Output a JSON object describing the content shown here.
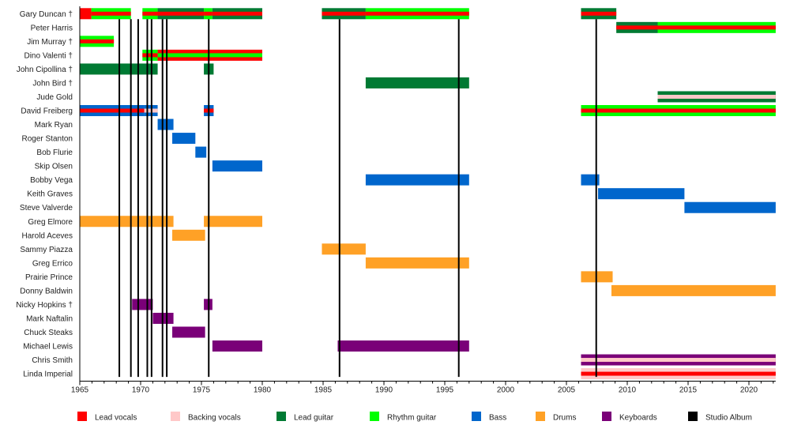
{
  "chart_data": {
    "type": "timeline",
    "title": "",
    "xlabel": "",
    "ylabel": "",
    "xlim": [
      1965,
      2022.2
    ],
    "x_ticks": [
      1965,
      1970,
      1975,
      1980,
      1985,
      1990,
      1995,
      2000,
      2005,
      2010,
      2015,
      2020
    ],
    "legend_position": "bottom",
    "roles": {
      "lead_vocals": {
        "label": "Lead vocals",
        "color": "#ff0000"
      },
      "backing_vocals": {
        "label": "Backing vocals",
        "color": "#ffc8c8"
      },
      "lead_guitar": {
        "label": "Lead guitar",
        "color": "#007a33"
      },
      "rhythm_guitar": {
        "label": "Rhythm guitar",
        "color": "#00ff00"
      },
      "bass": {
        "label": "Bass",
        "color": "#0066cc"
      },
      "drums": {
        "label": "Drums",
        "color": "#ffa126"
      },
      "keyboards": {
        "label": "Keyboards",
        "color": "#7a0078"
      },
      "studio_album": {
        "label": "Studio Album",
        "color": "#000000"
      }
    },
    "legend_order": [
      "lead_vocals",
      "backing_vocals",
      "lead_guitar",
      "rhythm_guitar",
      "bass",
      "drums",
      "keyboards",
      "studio_album"
    ],
    "studio_albums": [
      1968.25,
      1969.2,
      1969.8,
      1970.55,
      1970.9,
      1971.8,
      1972.15,
      1975.6,
      1986.35,
      1996.15,
      2007.45
    ],
    "members": [
      {
        "name": "Gary Duncan †",
        "periods": [
          {
            "start": 1965.0,
            "end": 1965.95,
            "role": "lead_vocals"
          },
          {
            "start": 1965.95,
            "end": 1969.2,
            "role": "rhythm_guitar",
            "vocals": "lead_vocals"
          },
          {
            "start": 1970.15,
            "end": 1971.4,
            "role": "rhythm_guitar",
            "vocals": "lead_vocals"
          },
          {
            "start": 1971.4,
            "end": 1975.2,
            "role": "lead_guitar",
            "vocals": "lead_vocals"
          },
          {
            "start": 1975.2,
            "end": 1975.9,
            "role": "rhythm_guitar",
            "vocals": "lead_vocals"
          },
          {
            "start": 1975.9,
            "end": 1980.0,
            "role": "lead_guitar",
            "vocals": "lead_vocals"
          },
          {
            "start": 1984.9,
            "end": 1988.5,
            "role": "lead_guitar",
            "vocals": "lead_vocals"
          },
          {
            "start": 1988.5,
            "end": 1997.0,
            "role": "rhythm_guitar",
            "vocals": "lead_vocals"
          },
          {
            "start": 2006.2,
            "end": 2009.1,
            "role": "lead_guitar",
            "vocals": "lead_vocals"
          }
        ]
      },
      {
        "name": "Peter Harris",
        "periods": [
          {
            "start": 2009.1,
            "end": 2012.5,
            "role": "lead_guitar",
            "vocals": "lead_vocals"
          },
          {
            "start": 2012.5,
            "end": 2022.2,
            "role": "rhythm_guitar",
            "vocals": "lead_vocals"
          }
        ]
      },
      {
        "name": "Jim Murray †",
        "periods": [
          {
            "start": 1965.0,
            "end": 1967.8,
            "role": "rhythm_guitar",
            "vocals": "lead_vocals"
          }
        ]
      },
      {
        "name": "Dino Valenti †",
        "periods": [
          {
            "start": 1970.15,
            "end": 1971.4,
            "role": "rhythm_guitar",
            "vocals": "lead_vocals"
          },
          {
            "start": 1971.4,
            "end": 1980.0,
            "role": "lead_vocals",
            "vocals": "rhythm_guitar"
          }
        ]
      },
      {
        "name": "John Cipollina †",
        "periods": [
          {
            "start": 1965.0,
            "end": 1971.4,
            "role": "lead_guitar"
          },
          {
            "start": 1975.2,
            "end": 1976.0,
            "role": "lead_guitar"
          }
        ]
      },
      {
        "name": "John Bird †",
        "periods": [
          {
            "start": 1988.5,
            "end": 1997.0,
            "role": "lead_guitar"
          }
        ]
      },
      {
        "name": "Jude Gold",
        "periods": [
          {
            "start": 2012.5,
            "end": 2022.2,
            "role": "lead_guitar",
            "vocals": "backing_vocals"
          }
        ]
      },
      {
        "name": "David Freiberg",
        "periods": [
          {
            "start": 1965.0,
            "end": 1970.3,
            "role": "bass",
            "vocals": "lead_vocals"
          },
          {
            "start": 1970.3,
            "end": 1971.4,
            "role": "bass",
            "vocals": "backing_vocals"
          },
          {
            "start": 1975.2,
            "end": 1976.0,
            "role": "bass",
            "vocals": "lead_vocals"
          },
          {
            "start": 2006.2,
            "end": 2022.2,
            "role": "rhythm_guitar",
            "vocals": "lead_vocals"
          }
        ]
      },
      {
        "name": "Mark Ryan",
        "periods": [
          {
            "start": 1971.4,
            "end": 1972.7,
            "role": "bass"
          }
        ]
      },
      {
        "name": "Roger Stanton",
        "periods": [
          {
            "start": 1972.6,
            "end": 1974.5,
            "role": "bass"
          }
        ]
      },
      {
        "name": "Bob Flurie",
        "periods": [
          {
            "start": 1974.5,
            "end": 1975.4,
            "role": "bass"
          }
        ]
      },
      {
        "name": "Skip Olsen",
        "periods": [
          {
            "start": 1975.9,
            "end": 1980.0,
            "role": "bass"
          }
        ]
      },
      {
        "name": "Bobby Vega",
        "periods": [
          {
            "start": 1988.5,
            "end": 1997.0,
            "role": "bass"
          },
          {
            "start": 2006.2,
            "end": 2007.7,
            "role": "bass"
          }
        ]
      },
      {
        "name": "Keith Graves",
        "periods": [
          {
            "start": 2007.6,
            "end": 2014.7,
            "role": "bass"
          }
        ]
      },
      {
        "name": "Steve Valverde",
        "periods": [
          {
            "start": 2014.7,
            "end": 2022.2,
            "role": "bass"
          }
        ]
      },
      {
        "name": "Greg Elmore",
        "periods": [
          {
            "start": 1965.0,
            "end": 1972.7,
            "role": "drums"
          },
          {
            "start": 1975.2,
            "end": 1980.0,
            "role": "drums"
          }
        ]
      },
      {
        "name": "Harold Aceves",
        "periods": [
          {
            "start": 1972.6,
            "end": 1975.3,
            "role": "drums"
          }
        ]
      },
      {
        "name": "Sammy Piazza",
        "periods": [
          {
            "start": 1984.9,
            "end": 1988.5,
            "role": "drums"
          }
        ]
      },
      {
        "name": "Greg Errico",
        "periods": [
          {
            "start": 1988.5,
            "end": 1997.0,
            "role": "drums"
          }
        ]
      },
      {
        "name": "Prairie Prince",
        "periods": [
          {
            "start": 2006.2,
            "end": 2008.8,
            "role": "drums"
          }
        ]
      },
      {
        "name": "Donny Baldwin",
        "periods": [
          {
            "start": 2008.7,
            "end": 2022.2,
            "role": "drums"
          }
        ]
      },
      {
        "name": "Nicky Hopkins †",
        "periods": [
          {
            "start": 1969.3,
            "end": 1971.0,
            "role": "keyboards"
          },
          {
            "start": 1975.2,
            "end": 1975.9,
            "role": "keyboards"
          }
        ]
      },
      {
        "name": "Mark Naftalin",
        "periods": [
          {
            "start": 1971.0,
            "end": 1972.7,
            "role": "keyboards"
          }
        ]
      },
      {
        "name": "Chuck Steaks",
        "periods": [
          {
            "start": 1972.6,
            "end": 1975.3,
            "role": "keyboards"
          }
        ]
      },
      {
        "name": "Michael Lewis",
        "periods": [
          {
            "start": 1975.9,
            "end": 1980.0,
            "role": "keyboards"
          },
          {
            "start": 1986.2,
            "end": 1997.0,
            "role": "keyboards"
          }
        ]
      },
      {
        "name": "Chris Smith",
        "periods": [
          {
            "start": 2006.2,
            "end": 2022.2,
            "role": "keyboards",
            "vocals": "backing_vocals"
          }
        ]
      },
      {
        "name": "Linda Imperial",
        "periods": [
          {
            "start": 2006.2,
            "end": 2022.2,
            "role": "backing_vocals",
            "vocals": "lead_vocals"
          }
        ]
      }
    ]
  }
}
